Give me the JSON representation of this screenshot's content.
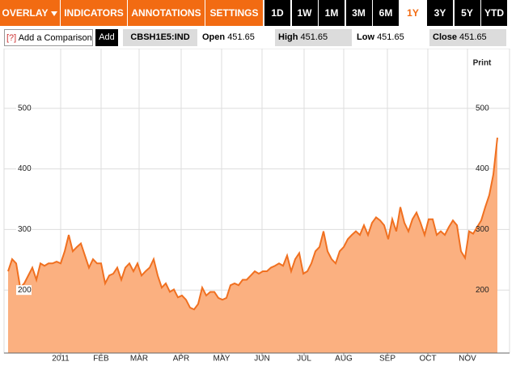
{
  "toolbar": {
    "menus": [
      "OVERLAY",
      "INDICATORS",
      "ANNOTATIONS",
      "SETTINGS"
    ],
    "ranges": [
      "1D",
      "1W",
      "1M",
      "3M",
      "6M",
      "1Y",
      "3Y",
      "5Y",
      "YTD"
    ],
    "active_range": "1Y"
  },
  "comparison": {
    "help": "[?]",
    "placeholder": "Add a Comparison",
    "button": "Add"
  },
  "quote": {
    "symbol": "CBSH1E5:IND",
    "fields": [
      {
        "label": "Open",
        "value": 451.65
      },
      {
        "label": "High",
        "value": 451.65
      },
      {
        "label": "Low",
        "value": 451.65
      },
      {
        "label": "Close",
        "value": 451.65
      }
    ]
  },
  "print": "Print",
  "chart_data": {
    "type": "area",
    "color": "#f07020",
    "fill": "#fbb080",
    "grid": true,
    "values": [
      231,
      251,
      244,
      204,
      211,
      224,
      237,
      217,
      244,
      240,
      244,
      244,
      247,
      244,
      264,
      291,
      264,
      271,
      277,
      257,
      237,
      251,
      244,
      244,
      211,
      224,
      227,
      237,
      217,
      237,
      244,
      231,
      244,
      224,
      231,
      237,
      251,
      224,
      204,
      211,
      197,
      201,
      188,
      191,
      184,
      171,
      168,
      177,
      204,
      191,
      197,
      197,
      187,
      184,
      187,
      208,
      211,
      208,
      217,
      217,
      224,
      231,
      227,
      231,
      231,
      237,
      240,
      244,
      240,
      257,
      231,
      251,
      261,
      227,
      231,
      244,
      264,
      271,
      297,
      264,
      251,
      244,
      264,
      271,
      284,
      291,
      297,
      291,
      307,
      291,
      311,
      320,
      315,
      307,
      284,
      317,
      297,
      337,
      311,
      297,
      317,
      328,
      311,
      291,
      317,
      317,
      291,
      297,
      291,
      304,
      315,
      307,
      264,
      253,
      297,
      293,
      304,
      315,
      337,
      357,
      391,
      451.65
    ],
    "xlim": [
      0,
      121
    ],
    "xticks": [
      {
        "value": 13,
        "label": "2011"
      },
      {
        "value": 23,
        "label": "FEB"
      },
      {
        "value": 32.4,
        "label": "MAR"
      },
      {
        "value": 42.8,
        "label": "APR"
      },
      {
        "value": 52.8,
        "label": "MAY"
      },
      {
        "value": 62.8,
        "label": "JUN"
      },
      {
        "value": 73.2,
        "label": "JUL"
      },
      {
        "value": 83,
        "label": "AUG"
      },
      {
        "value": 93.8,
        "label": "SEP"
      },
      {
        "value": 103.8,
        "label": "OCT"
      },
      {
        "value": 113.6,
        "label": "NOV"
      }
    ],
    "ylim": [
      96,
      596
    ],
    "yticks": [
      200,
      300,
      400,
      500
    ]
  }
}
